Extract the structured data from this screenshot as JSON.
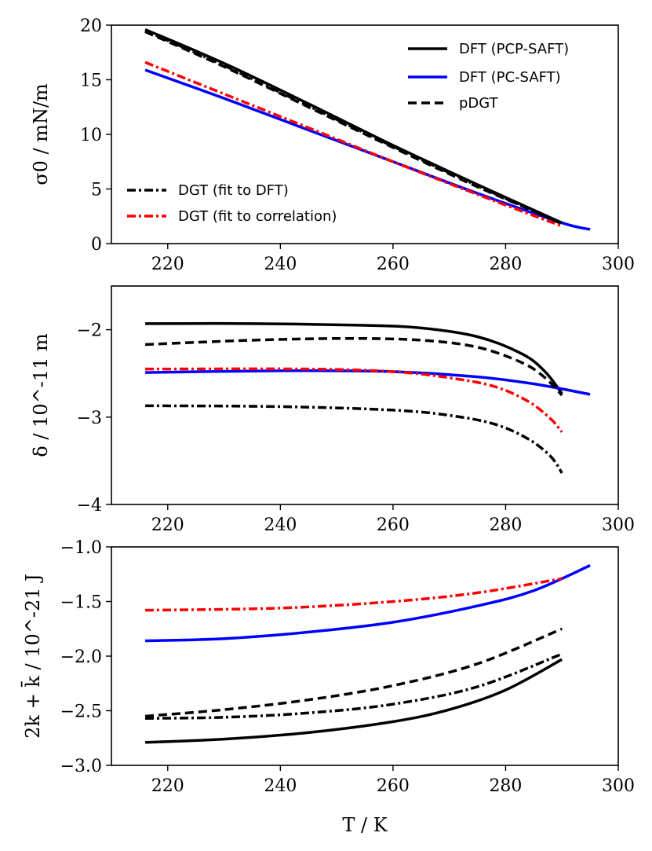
{
  "chart_data": [
    {
      "type": "line",
      "ylabel": "σ0 / mN/m",
      "xlabel": "",
      "xlim": [
        210,
        300
      ],
      "ylim": [
        0,
        20
      ],
      "xticks": [
        "220",
        "240",
        "260",
        "280",
        "300"
      ],
      "yticks": [
        "0",
        "5",
        "10",
        "15",
        "20"
      ],
      "legend": [
        "DFT (PCP-SAFT)",
        "DFT (PC-SAFT)",
        "pDGT",
        "DGT (fit to DFT)",
        "DGT (fit to correlation)"
      ],
      "series": [
        {
          "name": "DFT (PCP-SAFT)",
          "color": "#000000",
          "dash": "solid",
          "x": [
            216,
            230,
            245,
            260,
            275,
            290
          ],
          "y": [
            19.6,
            16.5,
            12.8,
            9.0,
            5.4,
            1.9
          ]
        },
        {
          "name": "DFT (PC-SAFT)",
          "color": "#0000ff",
          "dash": "solid",
          "x": [
            216,
            230,
            245,
            260,
            275,
            290,
            295
          ],
          "y": [
            15.9,
            13.3,
            10.4,
            7.5,
            4.6,
            1.9,
            1.3
          ]
        },
        {
          "name": "pDGT",
          "color": "#000000",
          "dash": "dashed",
          "x": [
            216,
            230,
            245,
            260,
            275,
            290
          ],
          "y": [
            19.4,
            16.2,
            12.5,
            8.8,
            5.2,
            1.9
          ]
        },
        {
          "name": "DGT (fit to DFT)",
          "color": "#000000",
          "dash": "dashdot",
          "x": [
            216,
            230,
            245,
            260,
            275,
            290
          ],
          "y": [
            19.5,
            16.3,
            12.6,
            8.9,
            5.3,
            1.8
          ]
        },
        {
          "name": "DGT (fit to correlation)",
          "color": "#ff0000",
          "dash": "dashdot",
          "x": [
            216,
            230,
            245,
            260,
            275,
            290
          ],
          "y": [
            16.6,
            13.7,
            10.6,
            7.5,
            4.5,
            1.6
          ]
        }
      ]
    },
    {
      "type": "line",
      "ylabel": "δ / 10^-11 m",
      "xlabel": "",
      "xlim": [
        210,
        300
      ],
      "ylim": [
        -4,
        -1.5
      ],
      "xticks": [
        "220",
        "240",
        "260",
        "280",
        "300"
      ],
      "yticks": [
        "−4",
        "−3",
        "−2"
      ],
      "series": [
        {
          "name": "DFT (PCP-SAFT)",
          "color": "#000000",
          "dash": "solid",
          "x": [
            216,
            235,
            255,
            265,
            275,
            283,
            287,
            290
          ],
          "y": [
            -1.93,
            -1.93,
            -1.95,
            -1.98,
            -2.08,
            -2.28,
            -2.48,
            -2.73
          ]
        },
        {
          "name": "DFT (PC-SAFT)",
          "color": "#0000ff",
          "dash": "solid",
          "x": [
            216,
            240,
            260,
            275,
            285,
            295
          ],
          "y": [
            -2.49,
            -2.47,
            -2.48,
            -2.54,
            -2.62,
            -2.74
          ]
        },
        {
          "name": "pDGT",
          "color": "#000000",
          "dash": "dashed",
          "x": [
            216,
            235,
            252,
            265,
            275,
            283,
            287,
            290
          ],
          "y": [
            -2.17,
            -2.12,
            -2.1,
            -2.12,
            -2.2,
            -2.38,
            -2.55,
            -2.75
          ]
        },
        {
          "name": "DGT (fit to DFT)",
          "color": "#000000",
          "dash": "dashdot",
          "x": [
            216,
            240,
            260,
            270,
            278,
            284,
            288,
            290
          ],
          "y": [
            -2.87,
            -2.88,
            -2.92,
            -2.98,
            -3.08,
            -3.25,
            -3.45,
            -3.64
          ]
        },
        {
          "name": "DGT (fit to correlation)",
          "color": "#ff0000",
          "dash": "dashdot",
          "x": [
            216,
            245,
            260,
            270,
            278,
            284,
            288,
            290
          ],
          "y": [
            -2.45,
            -2.45,
            -2.48,
            -2.55,
            -2.65,
            -2.82,
            -3.02,
            -3.17
          ]
        }
      ]
    },
    {
      "type": "line",
      "ylabel": "2k + k̄ / 10^-21 J",
      "xlabel": "T / K",
      "xlim": [
        210,
        300
      ],
      "ylim": [
        -3.0,
        -1.0
      ],
      "xticks": [
        "220",
        "240",
        "260",
        "280",
        "300"
      ],
      "yticks": [
        "−3.0",
        "−2.5",
        "−2.0",
        "−1.5",
        "−1.0"
      ],
      "series": [
        {
          "name": "DFT (PCP-SAFT)",
          "color": "#000000",
          "dash": "solid",
          "x": [
            216,
            230,
            245,
            260,
            270,
            280,
            290
          ],
          "y": [
            -2.79,
            -2.76,
            -2.7,
            -2.6,
            -2.49,
            -2.31,
            -2.03
          ]
        },
        {
          "name": "DFT (PC-SAFT)",
          "color": "#0000ff",
          "dash": "solid",
          "x": [
            216,
            230,
            245,
            260,
            275,
            285,
            295
          ],
          "y": [
            -1.86,
            -1.84,
            -1.78,
            -1.69,
            -1.54,
            -1.4,
            -1.17
          ]
        },
        {
          "name": "pDGT",
          "color": "#000000",
          "dash": "dashed",
          "x": [
            216,
            230,
            245,
            260,
            275,
            290
          ],
          "y": [
            -2.55,
            -2.49,
            -2.4,
            -2.27,
            -2.07,
            -1.75
          ]
        },
        {
          "name": "DGT (fit to DFT)",
          "color": "#000000",
          "dash": "dashdot",
          "x": [
            216,
            230,
            245,
            260,
            275,
            290
          ],
          "y": [
            -2.57,
            -2.56,
            -2.52,
            -2.44,
            -2.28,
            -1.98
          ]
        },
        {
          "name": "DGT (fit to correlation)",
          "color": "#ff0000",
          "dash": "dashdot",
          "x": [
            216,
            240,
            260,
            275,
            290
          ],
          "y": [
            -1.58,
            -1.56,
            -1.5,
            -1.42,
            -1.29
          ]
        }
      ]
    }
  ]
}
